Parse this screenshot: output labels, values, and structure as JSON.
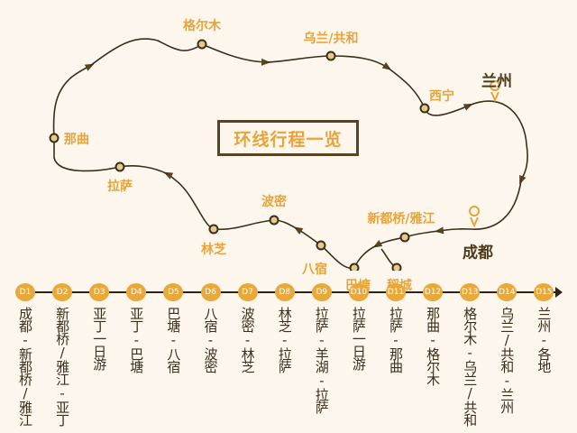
{
  "title": "环线行程一览",
  "colors": {
    "background": "#fcf6ec",
    "accent": "#e7a43a",
    "route": "#4a3a1e",
    "city": "#4d3a1a"
  },
  "map": {
    "stops": [
      {
        "name": "格尔木"
      },
      {
        "name": "乌兰/共和"
      },
      {
        "name": "西宁"
      },
      {
        "name": "那曲"
      },
      {
        "name": "拉萨"
      },
      {
        "name": "波密"
      },
      {
        "name": "林芝"
      },
      {
        "name": "八宿"
      },
      {
        "name": "巴塘"
      },
      {
        "name": "稻城"
      },
      {
        "name": "新都桥/雅江"
      }
    ],
    "cities": [
      {
        "name": "兰州",
        "icon": "map-pin-icon"
      },
      {
        "name": "成都",
        "icon": "map-pin-icon"
      }
    ]
  },
  "timeline": [
    {
      "day": "D1",
      "route": "成都-新都桥/雅江"
    },
    {
      "day": "D2",
      "route": "新都桥/雅江-亚丁"
    },
    {
      "day": "D3",
      "route": "亚丁一日游"
    },
    {
      "day": "D4",
      "route": "亚丁-巴塘"
    },
    {
      "day": "D5",
      "route": "巴塘-八宿"
    },
    {
      "day": "D6",
      "route": "八宿-波密"
    },
    {
      "day": "D7",
      "route": "波密-林芝"
    },
    {
      "day": "D8",
      "route": "林芝-拉萨"
    },
    {
      "day": "D9",
      "route": "拉萨-羊湖-拉萨"
    },
    {
      "day": "D10",
      "route": "拉萨一日游"
    },
    {
      "day": "D11",
      "route": "拉萨-那曲"
    },
    {
      "day": "D12",
      "route": "那曲-格尔木"
    },
    {
      "day": "D13",
      "route": "格尔木-乌兰/共和"
    },
    {
      "day": "D14",
      "route": "乌兰/共和-兰州"
    },
    {
      "day": "D15",
      "route": "兰州-各地"
    }
  ]
}
